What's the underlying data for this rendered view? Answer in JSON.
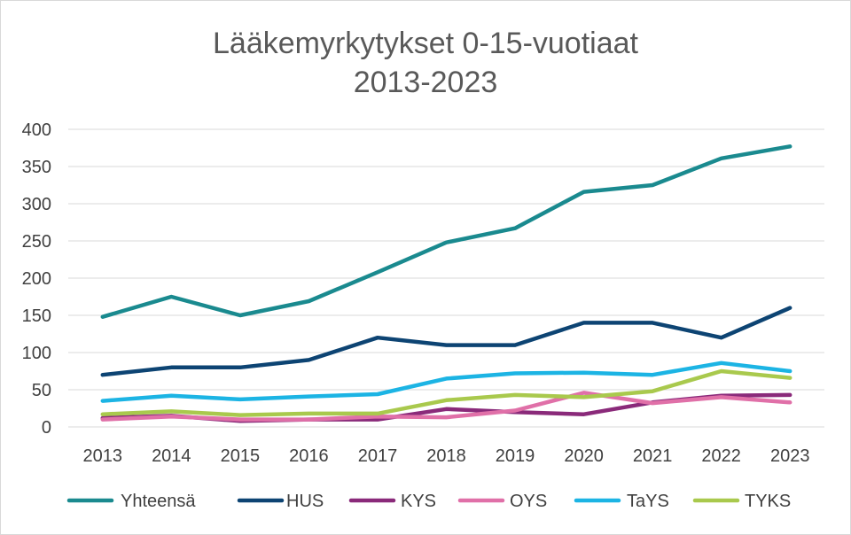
{
  "chart_data": {
    "type": "line",
    "title": "Lääkemyrkytykset 0-15-vuotiaat",
    "subtitle": "2013-2023",
    "xlabel": "",
    "ylabel": "",
    "x": [
      "2013",
      "2014",
      "2015",
      "2016",
      "2017",
      "2018",
      "2019",
      "2020",
      "2021",
      "2022",
      "2023"
    ],
    "ylim": [
      0,
      400
    ],
    "yticks": [
      0,
      50,
      100,
      150,
      200,
      250,
      300,
      350,
      400
    ],
    "grid": true,
    "legend_position": "bottom",
    "series": [
      {
        "name": "Yhteensä",
        "color": "#1a8a8f",
        "values": [
          148,
          175,
          150,
          169,
          208,
          248,
          267,
          316,
          325,
          361,
          377
        ]
      },
      {
        "name": "HUS",
        "color": "#0d4473",
        "values": [
          70,
          80,
          80,
          90,
          120,
          110,
          110,
          140,
          140,
          120,
          160
        ]
      },
      {
        "name": "KYS",
        "color": "#8a2a7a",
        "values": [
          12,
          15,
          8,
          10,
          10,
          24,
          20,
          17,
          33,
          42,
          43
        ]
      },
      {
        "name": "OYS",
        "color": "#e070a8",
        "values": [
          10,
          14,
          10,
          10,
          14,
          13,
          22,
          46,
          32,
          40,
          33
        ]
      },
      {
        "name": "TaYS",
        "color": "#1cb4e4",
        "values": [
          35,
          42,
          37,
          41,
          44,
          65,
          72,
          73,
          70,
          86,
          75
        ]
      },
      {
        "name": "TYKS",
        "color": "#a9c94d",
        "values": [
          17,
          21,
          16,
          18,
          18,
          36,
          43,
          40,
          48,
          75,
          66
        ]
      }
    ]
  }
}
